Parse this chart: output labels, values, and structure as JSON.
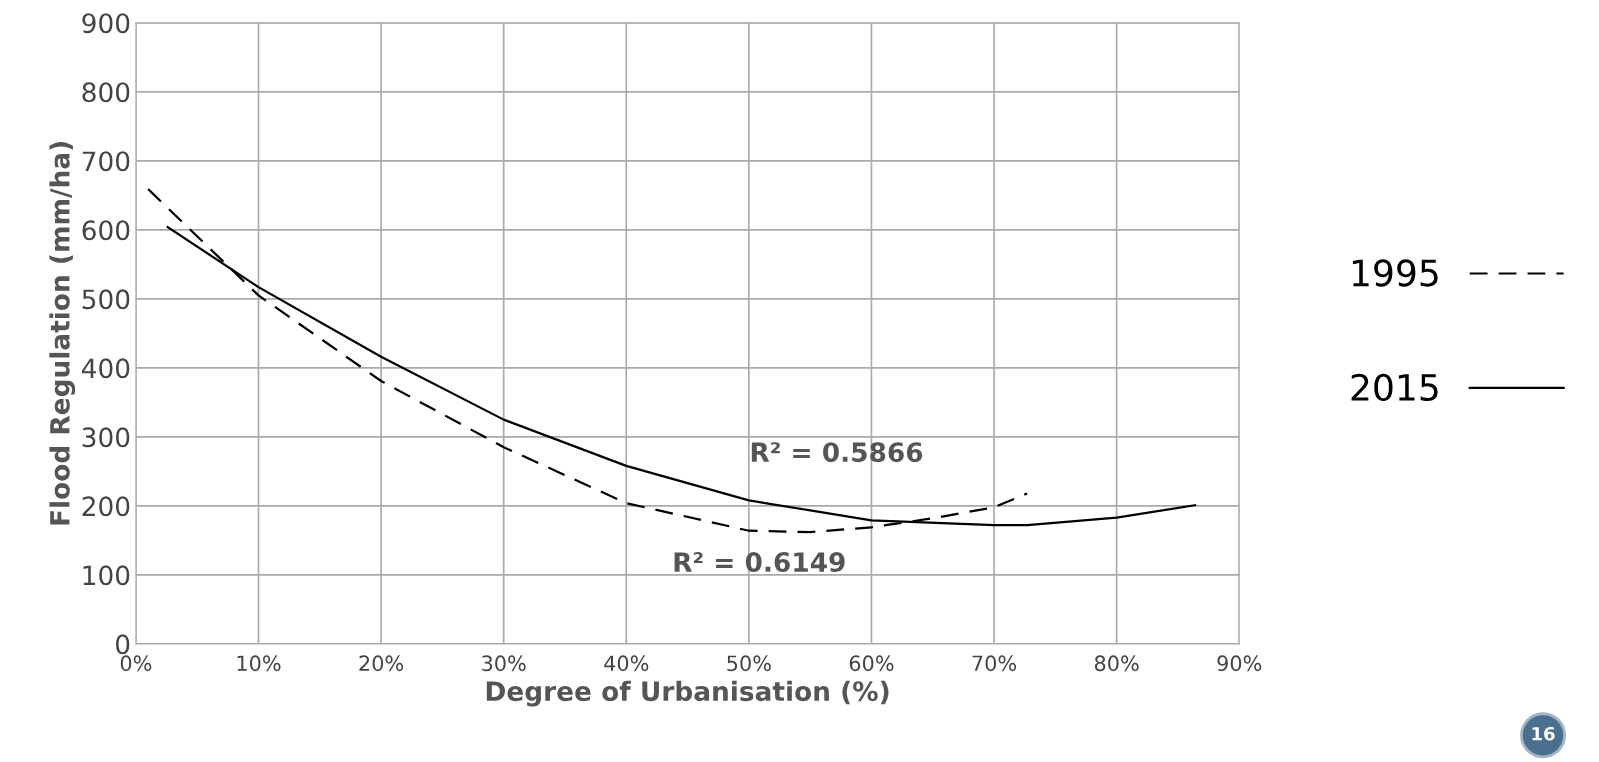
{
  "chart_data": {
    "type": "line",
    "xlabel": "Degree of Urbanisation (%)",
    "ylabel": "Flood Regulation (mm/ha)",
    "xlim": [
      0,
      90
    ],
    "xticks": [
      {
        "value": 0,
        "label": "0%"
      },
      {
        "value": 10,
        "label": "10%"
      },
      {
        "value": 20,
        "label": "20%"
      },
      {
        "value": 30,
        "label": "30%"
      },
      {
        "value": 40,
        "label": "40%"
      },
      {
        "value": 50,
        "label": "50%"
      },
      {
        "value": 60,
        "label": "60%"
      },
      {
        "value": 70,
        "label": "70%"
      },
      {
        "value": 80,
        "label": "80%"
      },
      {
        "value": 90,
        "label": "90%"
      }
    ],
    "ylim": [
      0,
      900
    ],
    "yticks": [
      0,
      100,
      200,
      300,
      400,
      500,
      600,
      700,
      800,
      900
    ],
    "grid": true,
    "legend": "right",
    "series": [
      {
        "name": "1995",
        "color": "#000000",
        "line_style": "dashed",
        "x": [
          1,
          10,
          20,
          30,
          40,
          50,
          55,
          60,
          65,
          70,
          72.7
        ],
        "values": [
          659,
          505,
          381,
          285,
          204,
          164,
          162,
          169,
          182,
          198,
          218
        ]
      },
      {
        "name": "2015",
        "color": "#000000",
        "line_style": "solid",
        "x": [
          2.6,
          10,
          20,
          30,
          40,
          50,
          60,
          70,
          72.7,
          80,
          86.4
        ],
        "values": [
          604,
          517,
          416,
          325,
          258,
          208,
          179,
          172,
          172,
          183,
          201
        ]
      }
    ],
    "annotations": [
      "R² = 0.5866",
      "R² = 0.6149",
      "16"
    ]
  }
}
